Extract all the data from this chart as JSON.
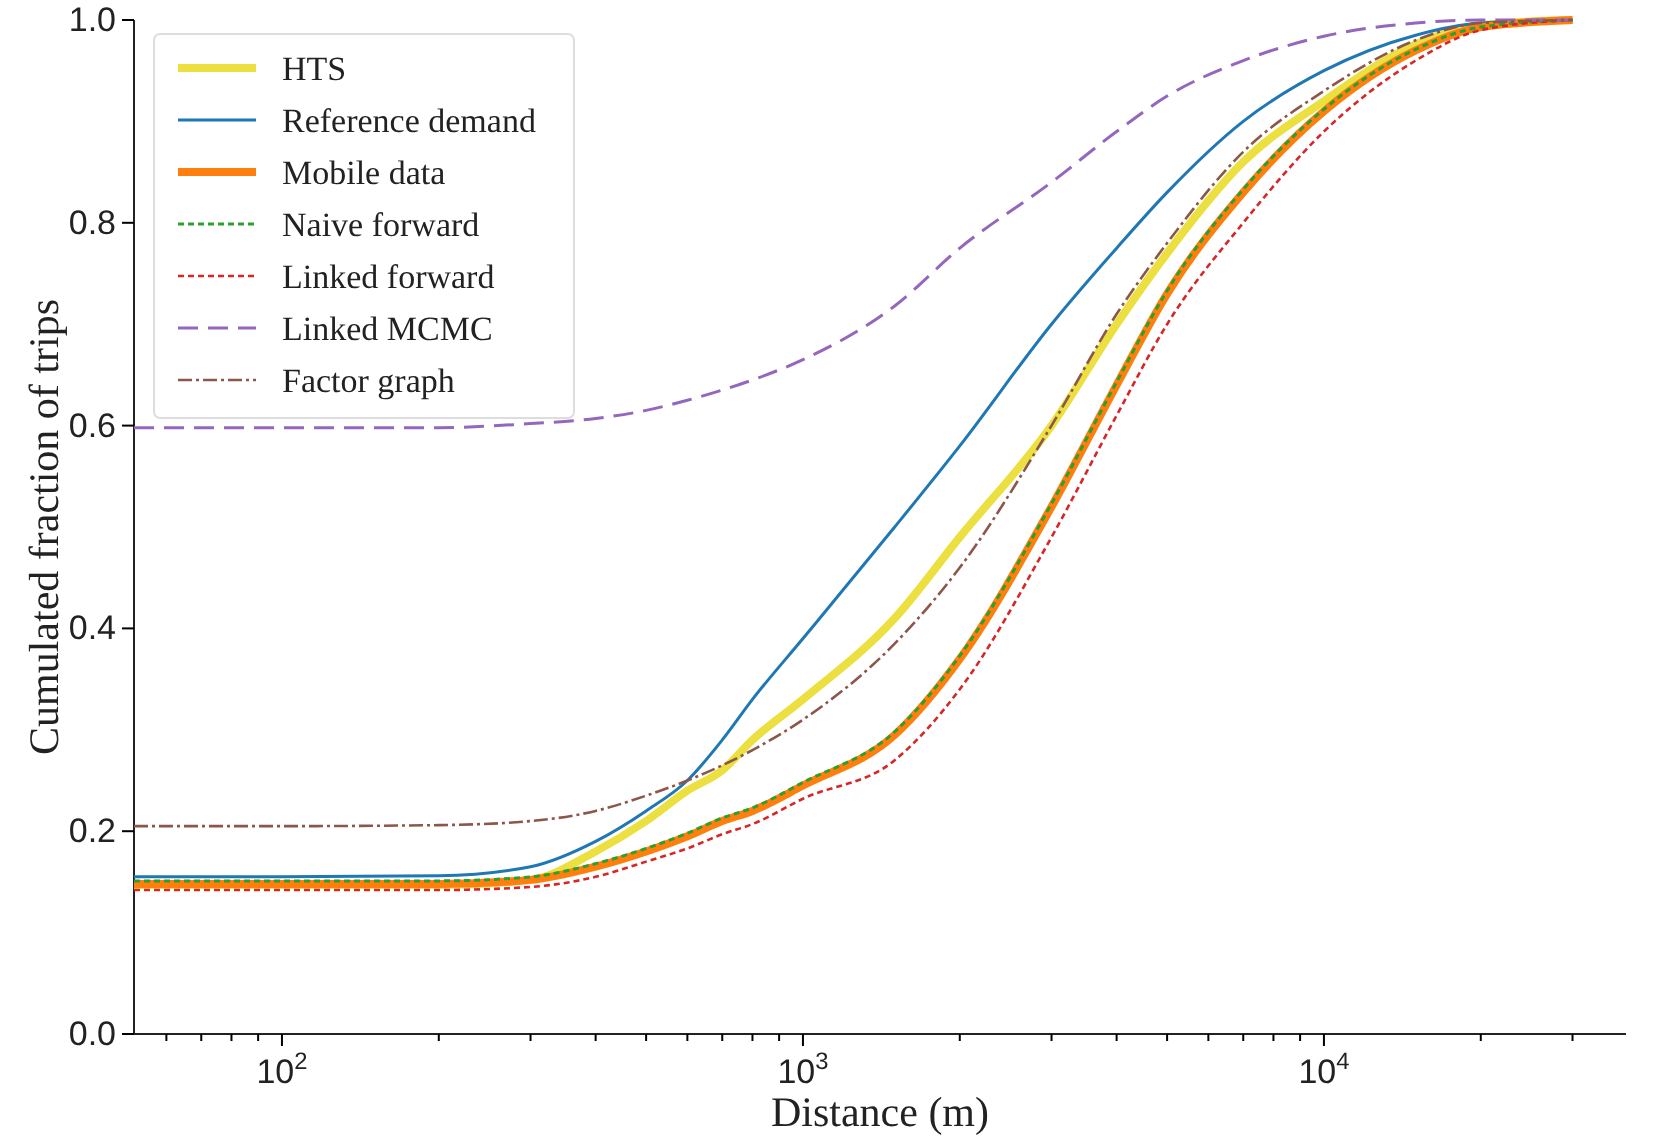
{
  "chart_data": {
    "type": "line",
    "xlabel": "Distance (m)",
    "ylabel": "Cumulated fraction of trips",
    "log": "x",
    "grid": false,
    "legend": "top left",
    "x": [
      52,
      100,
      200,
      300,
      400,
      500,
      600,
      700,
      800,
      1000,
      1500,
      2000,
      3000,
      4000,
      5000,
      7000,
      10000,
      15000,
      20000,
      30000
    ],
    "xlim": [
      52,
      38000
    ],
    "xticks": [
      {
        "value": 60,
        "label": null
      },
      {
        "value": 70,
        "label": null
      },
      {
        "value": 80,
        "label": null
      },
      {
        "value": 90,
        "label": null
      },
      {
        "value": 100,
        "label": "10$^{2}$"
      },
      {
        "value": 200,
        "label": null
      },
      {
        "value": 300,
        "label": null
      },
      {
        "value": 400,
        "label": null
      },
      {
        "value": 500,
        "label": null
      },
      {
        "value": 600,
        "label": null
      },
      {
        "value": 700,
        "label": null
      },
      {
        "value": 800,
        "label": null
      },
      {
        "value": 900,
        "label": null
      },
      {
        "value": 1000,
        "label": "10$^{3}$"
      },
      {
        "value": 2000,
        "label": null
      },
      {
        "value": 3000,
        "label": null
      },
      {
        "value": 4000,
        "label": null
      },
      {
        "value": 5000,
        "label": null
      },
      {
        "value": 6000,
        "label": null
      },
      {
        "value": 7000,
        "label": null
      },
      {
        "value": 8000,
        "label": null
      },
      {
        "value": 9000,
        "label": null
      },
      {
        "value": 10000,
        "label": "10$^{4}$"
      },
      {
        "value": 20000,
        "label": null
      },
      {
        "value": 30000,
        "label": null
      }
    ],
    "ylim": [
      0,
      1
    ],
    "yticks": [
      {
        "value": 0,
        "label": "0.0"
      },
      {
        "value": 0.2,
        "label": "0.2"
      },
      {
        "value": 0.4,
        "label": "0.4"
      },
      {
        "value": 0.6,
        "label": "0.6"
      },
      {
        "value": 0.8,
        "label": "0.8"
      },
      {
        "value": 1,
        "label": "1.0"
      }
    ],
    "series": [
      {
        "name": "HTS",
        "color": "#ebe040",
        "line_style": "solid",
        "values": [
          0.147,
          0.147,
          0.147,
          0.152,
          0.18,
          0.21,
          0.24,
          0.26,
          0.29,
          0.33,
          0.41,
          0.49,
          0.6,
          0.7,
          0.77,
          0.86,
          0.92,
          0.976,
          0.995,
          1
        ]
      },
      {
        "name": "Reference demand",
        "color": "#1f77b4",
        "line_style": "solid",
        "values": [
          0.155,
          0.155,
          0.156,
          0.165,
          0.19,
          0.22,
          0.25,
          0.29,
          0.33,
          0.39,
          0.5,
          0.58,
          0.7,
          0.775,
          0.83,
          0.9,
          0.95,
          0.985,
          0.997,
          1
        ]
      },
      {
        "name": "Mobile data",
        "color": "#ff7f0e",
        "line_style": "solid",
        "values": [
          0.148,
          0.148,
          0.148,
          0.152,
          0.165,
          0.18,
          0.195,
          0.21,
          0.22,
          0.245,
          0.295,
          0.37,
          0.52,
          0.64,
          0.73,
          0.83,
          0.91,
          0.97,
          0.993,
          1
        ]
      },
      {
        "name": "Naive forward",
        "color": "#2ca02c",
        "line_style": "dotted",
        "values": [
          0.151,
          0.151,
          0.151,
          0.155,
          0.168,
          0.183,
          0.198,
          0.213,
          0.223,
          0.248,
          0.298,
          0.373,
          0.523,
          0.643,
          0.733,
          0.833,
          0.912,
          0.971,
          0.993,
          1
        ]
      },
      {
        "name": "Linked forward",
        "color": "#d62728",
        "line_style": "dotted",
        "values": [
          0.142,
          0.142,
          0.142,
          0.145,
          0.155,
          0.17,
          0.183,
          0.197,
          0.207,
          0.232,
          0.27,
          0.34,
          0.49,
          0.61,
          0.7,
          0.8,
          0.89,
          0.96,
          0.99,
          1
        ]
      },
      {
        "name": "Linked MCMC",
        "color": "#9467bd",
        "line_style": "dashed",
        "values": [
          0.598,
          0.598,
          0.598,
          0.602,
          0.607,
          0.615,
          0.625,
          0.635,
          0.645,
          0.665,
          0.718,
          0.775,
          0.84,
          0.89,
          0.925,
          0.96,
          0.984,
          0.997,
          1,
          1
        ]
      },
      {
        "name": "Factor graph",
        "color": "#8c564b",
        "line_style": "dashdot",
        "values": [
          0.205,
          0.205,
          0.206,
          0.21,
          0.22,
          0.235,
          0.25,
          0.265,
          0.28,
          0.31,
          0.385,
          0.46,
          0.6,
          0.71,
          0.78,
          0.87,
          0.93,
          0.98,
          0.997,
          1
        ]
      }
    ]
  }
}
